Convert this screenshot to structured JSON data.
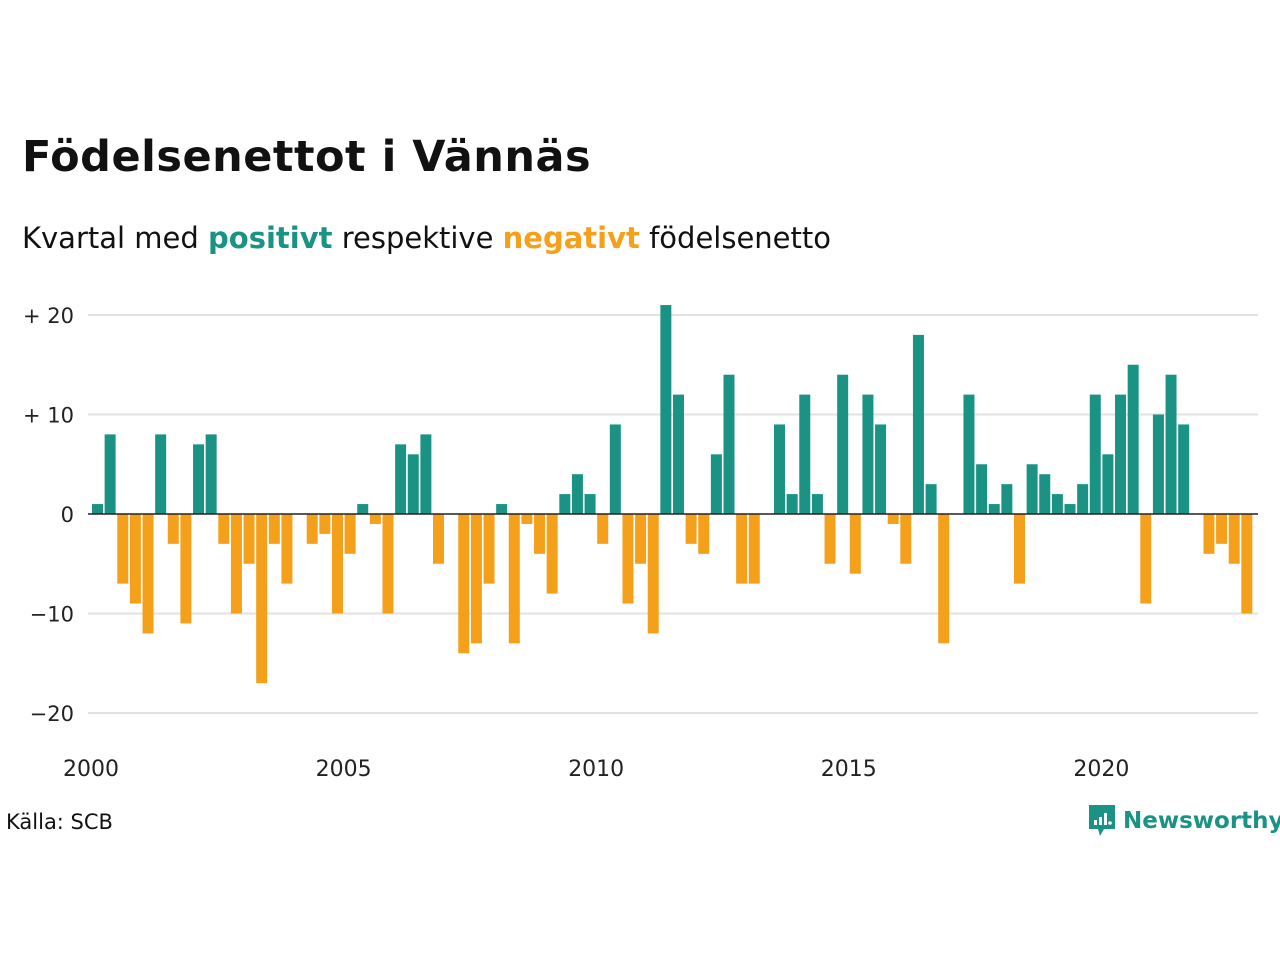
{
  "header": {
    "title": "Födelsenettot i Vännäs",
    "subtitle_prefix": "Kvartal med",
    "subtitle_positive": "positivt",
    "subtitle_middle": "respektive",
    "subtitle_negative": "negativt",
    "subtitle_suffix": "födelsenetto"
  },
  "colors": {
    "positive": "#1b9384",
    "negative": "#f5a01a"
  },
  "footer": {
    "source": "Källa: SCB",
    "brand": "Newsworthy"
  },
  "chart_data": {
    "type": "bar",
    "x_start_year": 2000,
    "x_ticks": [
      "2000",
      "2005",
      "2010",
      "2015",
      "2020"
    ],
    "y_ticks": [
      {
        "value": 20,
        "label": "+ 20"
      },
      {
        "value": 10,
        "label": "+ 10"
      },
      {
        "value": 0,
        "label": "0"
      },
      {
        "value": -10,
        "label": "−10"
      },
      {
        "value": -20,
        "label": "−20"
      }
    ],
    "ylim": [
      -22,
      22
    ],
    "grid": true,
    "values": [
      1,
      8,
      -7,
      -9,
      -12,
      8,
      -3,
      -11,
      7,
      8,
      -3,
      -10,
      -5,
      -17,
      -3,
      -7,
      0,
      -3,
      -2,
      -10,
      -4,
      1,
      -1,
      -10,
      7,
      6,
      8,
      -5,
      0,
      -14,
      -13,
      -7,
      1,
      -13,
      -1,
      -4,
      -8,
      2,
      4,
      2,
      -3,
      9,
      -9,
      -5,
      -12,
      21,
      12,
      -3,
      -4,
      6,
      14,
      -7,
      -7,
      0,
      9,
      2,
      12,
      2,
      -5,
      14,
      -6,
      12,
      9,
      -1,
      -5,
      18,
      3,
      -13,
      0,
      12,
      5,
      1,
      3,
      -7,
      5,
      4,
      2,
      1,
      3,
      12,
      6,
      12,
      15,
      -9,
      10,
      14,
      9,
      0,
      -4,
      -3,
      -5,
      -10
    ]
  }
}
